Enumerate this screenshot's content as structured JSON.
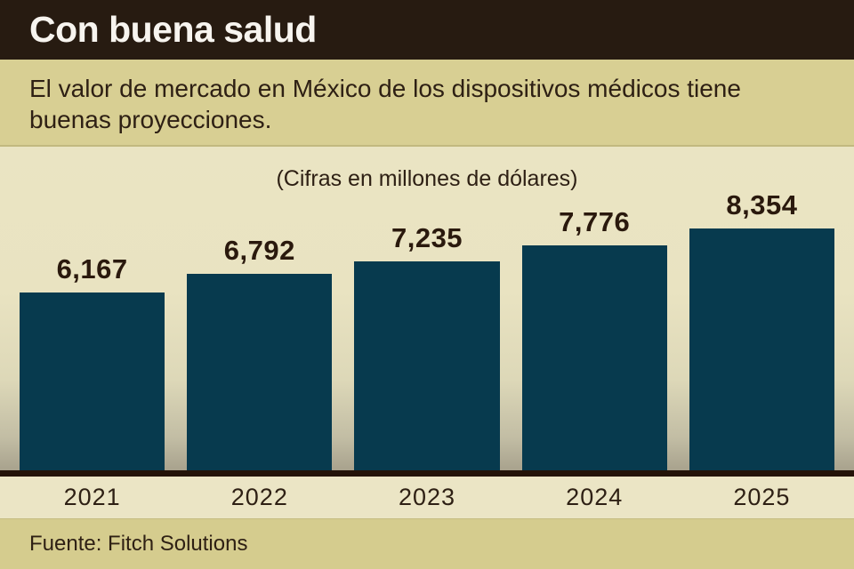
{
  "header": {
    "title": "Con buena salud"
  },
  "subtitle": "El valor de mercado en México de los dispositivos médicos tiene buenas proyecciones.",
  "source": "Fuente: Fitch Solutions",
  "chart_data": {
    "type": "bar",
    "title": "(Cifras en millones de dólares)",
    "categories": [
      "2021",
      "2022",
      "2023",
      "2024",
      "2025"
    ],
    "values": [
      6167,
      6792,
      7235,
      7776,
      8354
    ],
    "value_labels": [
      "6,167",
      "6,792",
      "7,235",
      "7,776",
      "8,354"
    ],
    "ylabel": "",
    "xlabel": "",
    "ylim": [
      0,
      8800
    ],
    "grid": false,
    "legend": "none",
    "bar_color": "#073a4e",
    "value_label_color": "#2a190d",
    "baseline_color": "#241309"
  },
  "colors": {
    "header_bg": "#271b11",
    "header_text": "#f7f4ef",
    "subtitle_band_bg": "#d8cf93",
    "chart_bg_top": "#eae4c3",
    "chart_bg_bottom": "#a8a28d",
    "years_band_bg": "#ebe5c5",
    "source_band_bg": "#d5cc8e",
    "text_dark": "#2e2014"
  }
}
